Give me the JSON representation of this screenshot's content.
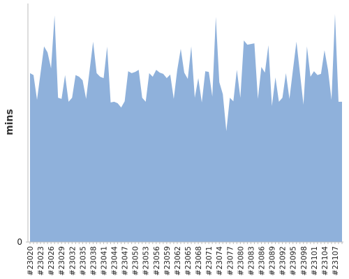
{
  "chart_data": {
    "type": "area",
    "y_label": "mins",
    "color": "#8fb1db",
    "categories": [
      "#23020",
      null,
      null,
      "#23023",
      null,
      null,
      "#23026",
      null,
      null,
      "#23029",
      null,
      null,
      "#23032",
      null,
      null,
      "#23035",
      null,
      null,
      "#23038",
      null,
      null,
      "#23041",
      null,
      null,
      "#23044",
      null,
      null,
      "#23047",
      null,
      null,
      "#23050",
      null,
      null,
      "#23053",
      null,
      null,
      "#23056",
      null,
      null,
      "#23059",
      null,
      null,
      "#23062",
      null,
      null,
      "#23065",
      null,
      null,
      "#23068",
      null,
      null,
      "#23071",
      null,
      null,
      "#23074",
      null,
      null,
      "#23077",
      null,
      null,
      "#23080",
      null,
      null,
      "#23083",
      null,
      null,
      "#23086",
      null,
      null,
      "#23089",
      null,
      null,
      "#23092",
      null,
      null,
      "#23095",
      null,
      null,
      "#23098",
      null,
      null,
      "#23101",
      null,
      null,
      "#23104",
      null,
      null,
      "#23107",
      null,
      null
    ],
    "values": [
      70.8,
      70,
      59.6,
      70.8,
      82,
      79.5,
      72.8,
      95,
      60.5,
      60,
      70,
      58.8,
      60.5,
      70,
      69.3,
      67.8,
      60,
      72,
      84,
      70.8,
      69.3,
      68.7,
      81.9,
      58.5,
      58.8,
      58.2,
      56.4,
      59,
      71.6,
      70.8,
      71.3,
      72.2,
      60.5,
      58.8,
      70.8,
      69.3,
      72.2,
      71,
      70.5,
      68.7,
      70.2,
      60,
      72.2,
      81,
      71,
      68.4,
      82,
      60.5,
      68.7,
      58.5,
      71.6,
      71.3,
      61,
      94.4,
      67,
      62,
      46.5,
      60.5,
      59,
      72.2,
      60.5,
      84.5,
      82.7,
      83,
      83.3,
      60,
      73.4,
      71,
      82.5,
      57,
      69,
      58.8,
      60.5,
      70.8,
      60,
      72.2,
      84,
      70.8,
      57.6,
      82,
      69.3,
      71.6,
      70,
      70.5,
      80.4,
      72.2,
      59.6,
      95.6,
      58.8,
      58.8
    ],
    "ylim": [
      0,
      100
    ],
    "yticks": [
      0
    ]
  }
}
